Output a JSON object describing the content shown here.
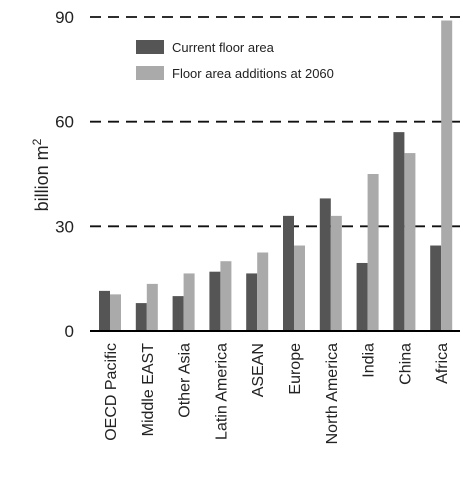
{
  "chart_data": {
    "type": "bar",
    "ylabel": "billion m",
    "ylabel_superscript": "2",
    "ylim": [
      0,
      90
    ],
    "yticks": [
      0,
      30,
      60,
      90
    ],
    "grid": "dashed horizontal lines at 30, 60, 90",
    "legend_position": "top-left",
    "categories": [
      "OECD Pacific",
      "Middle EAST",
      "Other Asia",
      "Latin America",
      "ASEAN",
      "Europe",
      "North America",
      "India",
      "China",
      "Africa"
    ],
    "series": [
      {
        "name": "Current floor area",
        "color": "#555555",
        "values": [
          11.5,
          8,
          10,
          17,
          16.5,
          33,
          38,
          19.5,
          57,
          24.5
        ]
      },
      {
        "name": "Floor area additions at 2060",
        "color": "#aaaaaa",
        "values": [
          10.5,
          13.5,
          16.5,
          20,
          22.5,
          24.5,
          33,
          45,
          51,
          89
        ]
      }
    ]
  }
}
